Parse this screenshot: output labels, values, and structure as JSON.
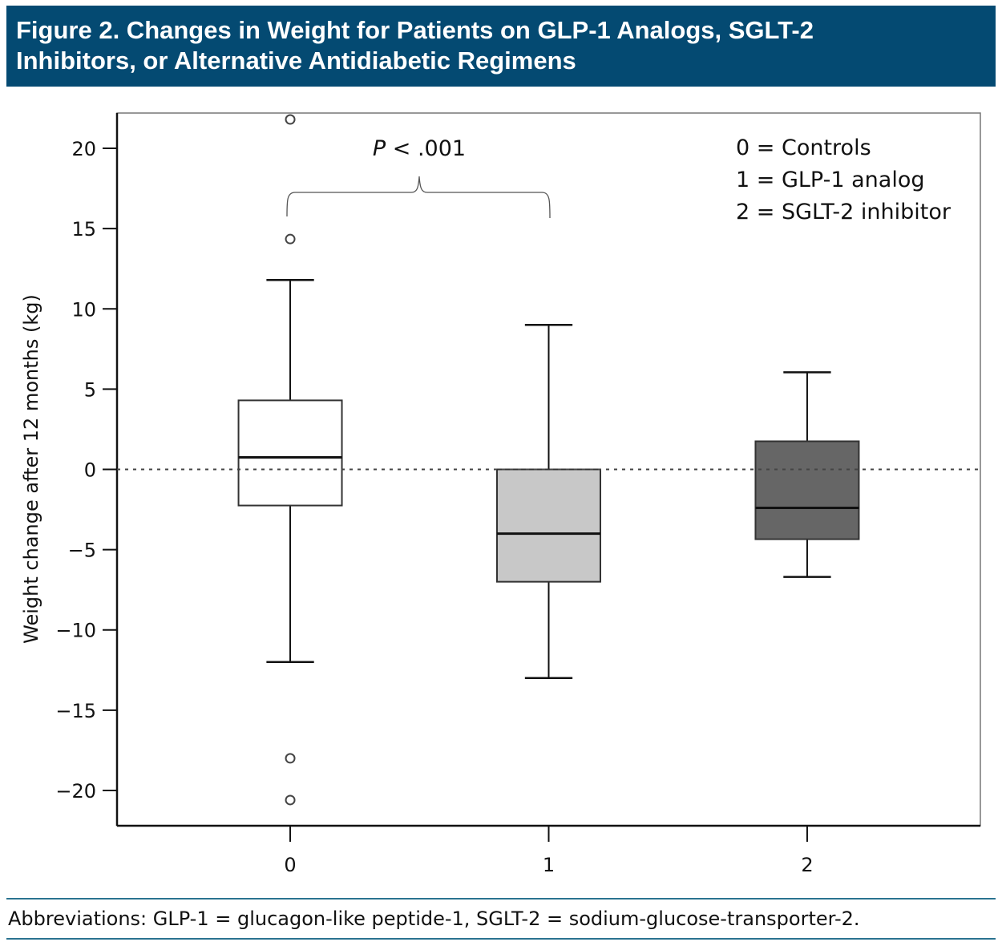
{
  "header": {
    "title_line1": "Figure 2. Changes in Weight for Patients on GLP-1 Analogs, SGLT-2",
    "title_line2": "Inhibitors, or Alternative Antidiabetic Regimens"
  },
  "footer": {
    "abbreviations": "Abbreviations: GLP-1 = glucagon-like peptide-1, SGLT-2 = sodium-glucose-transporter-2."
  },
  "chart_data": {
    "type": "boxplot",
    "title": "Figure 2. Changes in Weight for Patients on GLP-1 Analogs, SGLT-2 Inhibitors, or Alternative Antidiabetic Regimens",
    "xlabel": "",
    "ylabel": "Weight change after 12 months (kg)",
    "categories": [
      "0",
      "1",
      "2"
    ],
    "ylim": [
      -22.2,
      22.2
    ],
    "xlim": [
      -0.67,
      2.67
    ],
    "yticks": [
      20,
      15,
      10,
      5,
      0,
      -5,
      -10,
      -15,
      -20
    ],
    "ytick_labels": [
      "20",
      "15",
      "10",
      "5",
      "0",
      "−5",
      "−10",
      "−15",
      "−20"
    ],
    "reference_line": {
      "y": 0,
      "style": "dotted"
    },
    "grid": false,
    "boxes": [
      {
        "category": "0",
        "whisker_low": -12.0,
        "q1": -2.25,
        "median": 0.75,
        "q3": 4.3,
        "whisker_high": 11.8,
        "outliers": [
          21.8,
          14.35,
          -18.0,
          -20.6
        ],
        "fill": "#ffffff"
      },
      {
        "category": "1",
        "whisker_low": -13.0,
        "q1": -7.0,
        "median": -4.0,
        "q3": 0.0,
        "whisker_high": 9.0,
        "outliers": [],
        "fill": "#c8c8c8"
      },
      {
        "category": "2",
        "whisker_low": -6.7,
        "q1": -4.35,
        "median": -2.4,
        "q3": 1.75,
        "whisker_high": 6.05,
        "outliers": [],
        "fill": "#666666"
      }
    ],
    "annotation": {
      "p_label": "P",
      "p_rest": " < .001",
      "between": [
        "0",
        "1"
      ]
    },
    "legend": {
      "placement": "top-right",
      "entries": [
        "0 = Controls",
        "1 = GLP-1 analog",
        "2 = SGLT-2 inhibitor"
      ]
    }
  },
  "colors": {
    "header_bg": "#044a72",
    "footer_rule": "#2a7390"
  }
}
